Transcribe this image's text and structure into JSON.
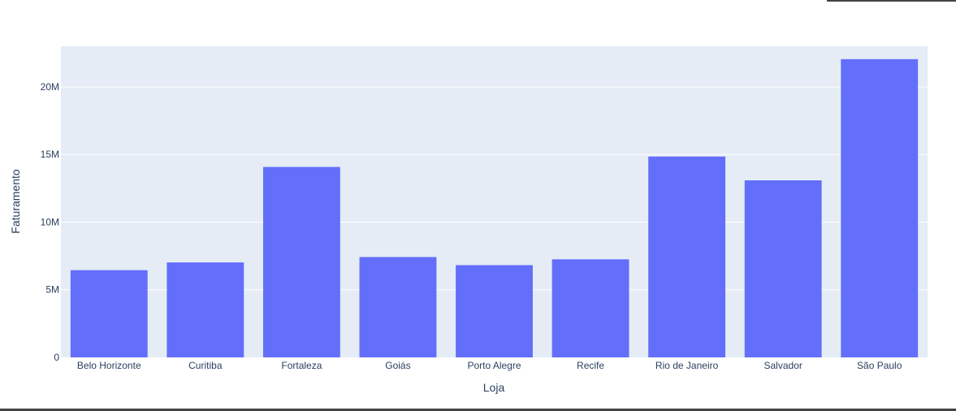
{
  "chart_data": {
    "type": "bar",
    "categories": [
      "Belo Horizonte",
      "Curitiba",
      "Fortaleza",
      "Goiás",
      "Porto Alegre",
      "Recife",
      "Rio de Janeiro",
      "Salvador",
      "São Paulo"
    ],
    "values": [
      6450000,
      7020000,
      14080000,
      7420000,
      6820000,
      7250000,
      14850000,
      13090000,
      22050000
    ],
    "xlabel": "Loja",
    "ylabel": "Faturamento",
    "ylim": [
      0,
      23000000
    ],
    "yticks": [
      0,
      5000000,
      10000000,
      15000000,
      20000000
    ],
    "ytick_labels": [
      "0",
      "5M",
      "10M",
      "15M",
      "20M"
    ],
    "grid": true,
    "colors": {
      "bar": "#636efa",
      "plot_bg": "#e5ecf6",
      "grid": "#ffffff",
      "text": "#2a3f5f"
    }
  }
}
